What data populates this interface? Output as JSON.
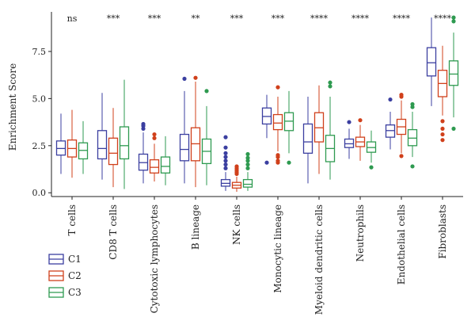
{
  "chart_data": {
    "type": "boxplot",
    "title": "",
    "xlabel": "",
    "ylabel": "Enrichment Score",
    "ylim": [
      -0.2,
      9.6
    ],
    "yticks": [
      "0.0",
      "2.5",
      "5.0",
      "7.5"
    ],
    "ytick_values": [
      0,
      2.5,
      5,
      7.5
    ],
    "legend_position": "bottom-left",
    "series": [
      {
        "name": "C1",
        "color": "#3b3fa0"
      },
      {
        "name": "C2",
        "color": "#d0401b"
      },
      {
        "name": "C3",
        "color": "#2e9a50"
      }
    ],
    "categories": [
      {
        "label": "T cells",
        "significance": "ns",
        "boxes": [
          {
            "min": 1.0,
            "q1": 2.0,
            "median": 2.35,
            "q3": 2.75,
            "max": 4.2,
            "outliers": []
          },
          {
            "min": 0.8,
            "q1": 1.9,
            "median": 2.35,
            "q3": 2.8,
            "max": 4.4,
            "outliers": []
          },
          {
            "min": 1.0,
            "q1": 1.8,
            "median": 2.25,
            "q3": 2.65,
            "max": 3.8,
            "outliers": []
          }
        ]
      },
      {
        "label": "CD8 T cells",
        "significance": "***",
        "boxes": [
          {
            "min": 0.7,
            "q1": 1.8,
            "median": 2.35,
            "q3": 3.3,
            "max": 5.3,
            "outliers": []
          },
          {
            "min": 0.3,
            "q1": 1.5,
            "median": 2.1,
            "q3": 2.9,
            "max": 4.5,
            "outliers": []
          },
          {
            "min": 0.2,
            "q1": 1.8,
            "median": 2.5,
            "q3": 3.5,
            "max": 6.0,
            "outliers": []
          }
        ]
      },
      {
        "label": "Cytotoxic lymphocytes",
        "significance": "***",
        "boxes": [
          {
            "min": 0.5,
            "q1": 1.2,
            "median": 1.6,
            "q3": 2.05,
            "max": 3.2,
            "outliers": [
              3.4,
              3.55,
              3.65
            ]
          },
          {
            "min": 0.6,
            "q1": 1.05,
            "median": 1.35,
            "q3": 1.75,
            "max": 2.6,
            "outliers": [
              2.9,
              3.1
            ]
          },
          {
            "min": 0.4,
            "q1": 1.05,
            "median": 1.4,
            "q3": 1.9,
            "max": 3.0,
            "outliers": []
          }
        ]
      },
      {
        "label": "B lineage",
        "significance": "**",
        "boxes": [
          {
            "min": 0.5,
            "q1": 1.7,
            "median": 2.3,
            "q3": 3.1,
            "max": 5.4,
            "outliers": [
              6.05
            ]
          },
          {
            "min": 0.3,
            "q1": 1.7,
            "median": 2.6,
            "q3": 3.45,
            "max": 5.9,
            "outliers": [
              6.1
            ]
          },
          {
            "min": 0.4,
            "q1": 1.55,
            "median": 2.2,
            "q3": 2.85,
            "max": 4.6,
            "outliers": [
              5.4
            ]
          }
        ]
      },
      {
        "label": "NK cells",
        "significance": "***",
        "boxes": [
          {
            "min": 0.1,
            "q1": 0.35,
            "median": 0.5,
            "q3": 0.7,
            "max": 1.1,
            "outliers": [
              1.3,
              1.5,
              1.7,
              1.9,
              2.1,
              2.4,
              2.95
            ]
          },
          {
            "min": 0.05,
            "q1": 0.25,
            "median": 0.4,
            "q3": 0.55,
            "max": 0.85,
            "outliers": [
              1.0,
              1.1,
              1.2,
              1.3,
              1.4
            ]
          },
          {
            "min": 0.1,
            "q1": 0.3,
            "median": 0.45,
            "q3": 0.7,
            "max": 1.1,
            "outliers": [
              1.3,
              1.5,
              1.7,
              1.85,
              2.05
            ]
          }
        ]
      },
      {
        "label": "Monocytic lineage",
        "significance": "***",
        "boxes": [
          {
            "min": 2.9,
            "q1": 3.65,
            "median": 4.05,
            "q3": 4.5,
            "max": 5.2,
            "outliers": [
              1.6
            ]
          },
          {
            "min": 2.2,
            "q1": 3.35,
            "median": 3.7,
            "q3": 4.15,
            "max": 5.1,
            "outliers": [
              1.6,
              1.7,
              1.9,
              2.0,
              5.6
            ]
          },
          {
            "min": 2.1,
            "q1": 3.3,
            "median": 3.8,
            "q3": 4.25,
            "max": 5.4,
            "outliers": [
              1.6
            ]
          }
        ]
      },
      {
        "label": "Myeloid dendritic cells",
        "significance": "****",
        "boxes": [
          {
            "min": 0.5,
            "q1": 2.1,
            "median": 2.7,
            "q3": 3.65,
            "max": 5.1,
            "outliers": []
          },
          {
            "min": 1.0,
            "q1": 2.7,
            "median": 3.45,
            "q3": 4.25,
            "max": 5.7,
            "outliers": []
          },
          {
            "min": 0.7,
            "q1": 1.65,
            "median": 2.35,
            "q3": 3.05,
            "max": 5.1,
            "outliers": [
              5.65,
              5.85
            ]
          }
        ]
      },
      {
        "label": "Neutrophils",
        "significance": "****",
        "boxes": [
          {
            "min": 1.8,
            "q1": 2.4,
            "median": 2.6,
            "q3": 2.85,
            "max": 3.4,
            "outliers": [
              3.75
            ]
          },
          {
            "min": 1.7,
            "q1": 2.45,
            "median": 2.7,
            "q3": 2.95,
            "max": 3.6,
            "outliers": [
              3.85
            ]
          },
          {
            "min": 1.6,
            "q1": 2.15,
            "median": 2.4,
            "q3": 2.7,
            "max": 3.3,
            "outliers": [
              1.35
            ]
          }
        ]
      },
      {
        "label": "Endothelial cells",
        "significance": "****",
        "boxes": [
          {
            "min": 2.3,
            "q1": 2.95,
            "median": 3.3,
            "q3": 3.6,
            "max": 4.3,
            "outliers": [
              4.95
            ]
          },
          {
            "min": 2.1,
            "q1": 3.1,
            "median": 3.5,
            "q3": 3.9,
            "max": 4.9,
            "outliers": [
              1.95,
              5.1,
              5.2
            ]
          },
          {
            "min": 1.9,
            "q1": 2.5,
            "median": 2.9,
            "q3": 3.35,
            "max": 4.3,
            "outliers": [
              1.4,
              4.55,
              4.7
            ]
          }
        ]
      },
      {
        "label": "Fibroblasts",
        "significance": "****",
        "boxes": [
          {
            "min": 4.6,
            "q1": 6.2,
            "median": 6.9,
            "q3": 7.7,
            "max": 9.3,
            "outliers": []
          },
          {
            "min": 4.1,
            "q1": 5.1,
            "median": 5.8,
            "q3": 6.5,
            "max": 7.8,
            "outliers": [
              2.8,
              3.1,
              3.4,
              3.8
            ]
          },
          {
            "min": 4.0,
            "q1": 5.7,
            "median": 6.3,
            "q3": 7.0,
            "max": 8.5,
            "outliers": [
              3.4,
              9.1,
              9.3
            ]
          }
        ]
      }
    ]
  }
}
